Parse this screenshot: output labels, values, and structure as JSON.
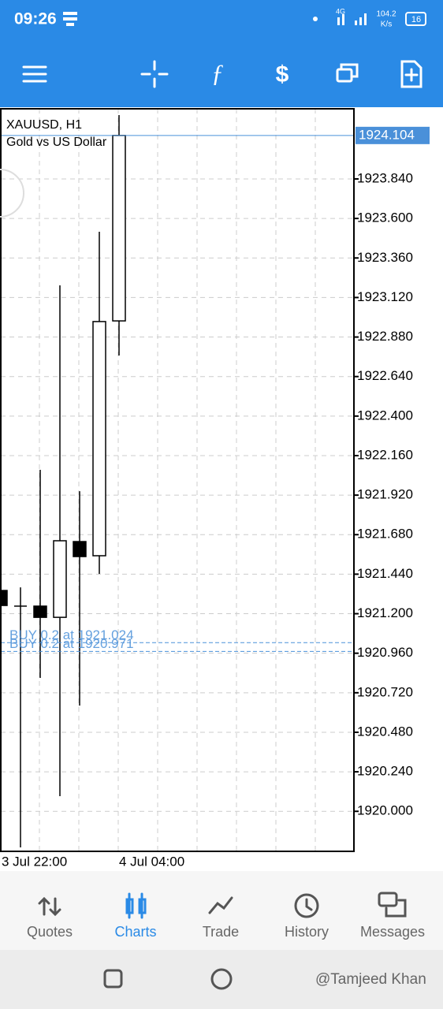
{
  "status_bar": {
    "time": "09:26",
    "network": "4G",
    "speed": "104.2",
    "speed_unit": "K/s",
    "battery": "16"
  },
  "chart_data": {
    "type": "candlestick",
    "title": "XAUUSD, H1",
    "subtitle": "Gold vs US Dollar",
    "categories": [
      "3 Jul 22:00",
      null,
      null,
      null,
      null,
      null,
      "4 Jul 04:00"
    ],
    "open": [
      1921.341,
      1921.246,
      1921.246,
      1921.178,
      1921.638,
      1921.552,
      1922.978
    ],
    "high": [
      1921.36,
      1921.36,
      1922.074,
      1923.194,
      1921.944,
      1923.519,
      1924.228
    ],
    "low": [
      1921.241,
      1919.781,
      1920.81,
      1920.092,
      1920.642,
      1921.442,
      1922.768
    ],
    "close": [
      1921.25,
      1921.246,
      1921.178,
      1921.643,
      1921.547,
      1922.974,
      1924.104
    ],
    "ylim": [
      1919.757,
      1924.266
    ],
    "yticks": [
      {
        "value": 1923.84,
        "label": "1923.840"
      },
      {
        "value": 1923.6,
        "label": "1923.600"
      },
      {
        "value": 1923.36,
        "label": "1923.360"
      },
      {
        "value": 1923.12,
        "label": "1923.120"
      },
      {
        "value": 1922.88,
        "label": "1922.880"
      },
      {
        "value": 1922.64,
        "label": "1922.640"
      },
      {
        "value": 1922.4,
        "label": "1922.400"
      },
      {
        "value": 1922.16,
        "label": "1922.160"
      },
      {
        "value": 1921.92,
        "label": "1921.920"
      },
      {
        "value": 1921.68,
        "label": "1921.680"
      },
      {
        "value": 1921.44,
        "label": "1921.440"
      },
      {
        "value": 1921.2,
        "label": "1921.200"
      },
      {
        "value": 1920.96,
        "label": "1920.960"
      },
      {
        "value": 1920.72,
        "label": "1920.720"
      },
      {
        "value": 1920.48,
        "label": "1920.480"
      },
      {
        "value": 1920.24,
        "label": "1920.240"
      },
      {
        "value": 1920,
        "label": "1920.000"
      }
    ],
    "price_line": 1924.104,
    "order_lines": [
      {
        "label": "BUY 0.2 at 1921.024",
        "value": 1921.024
      },
      {
        "label": "BUY 0.2 at 1920.971",
        "value": 1920.971
      }
    ],
    "grid": true,
    "bull_color": "#ffffff",
    "bear_color": "#000000",
    "line_color": "#4a90d9"
  },
  "nav": {
    "items": [
      "Quotes",
      "Charts",
      "Trade",
      "History",
      "Messages"
    ],
    "active": 1
  },
  "watermark": "@Tamjeed Khan"
}
